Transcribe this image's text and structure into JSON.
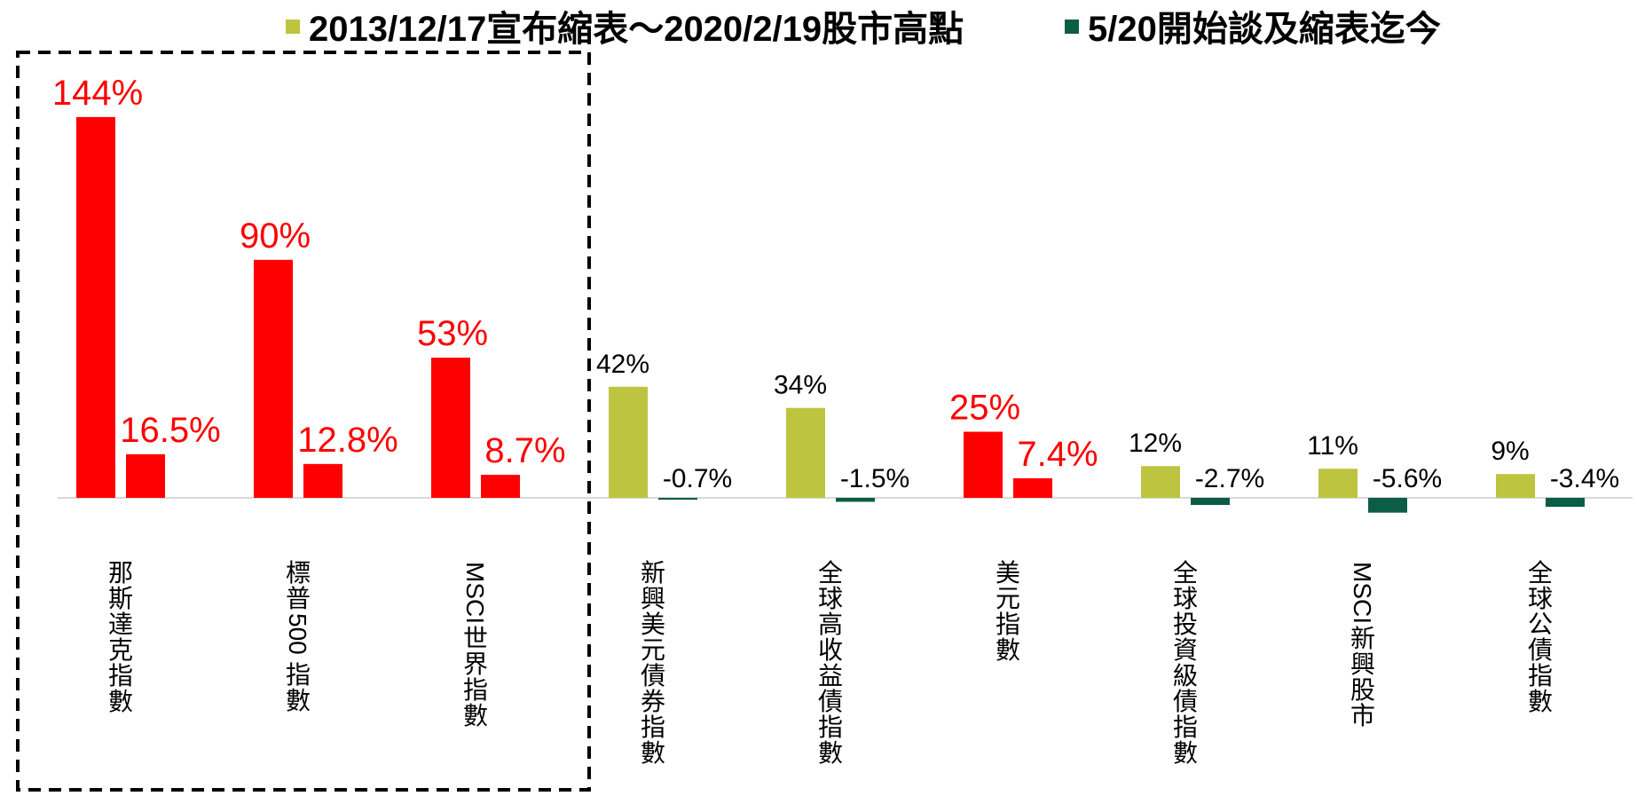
{
  "chart_data": {
    "type": "bar",
    "legend_position": "top",
    "grid": false,
    "ylim": [
      -10,
      160
    ],
    "colors": {
      "series1": "#BCC440",
      "series2": "#0B5D45",
      "highlight": "#FF0000",
      "axis": "#D9D9D9",
      "label_default": "#000000"
    },
    "series": [
      {
        "name": "2013/12/17宣布縮表～2020/2/19股市高點",
        "legend_label": "2013/12/17宣布縮表～2020/2/19股市高點",
        "values": [
          144,
          90,
          53,
          42,
          34,
          25,
          12,
          11,
          9
        ],
        "labels": [
          "144%",
          "90%",
          "53%",
          "42%",
          "34%",
          "25%",
          "12%",
          "11%",
          "9%"
        ]
      },
      {
        "name": "5/20開始談及縮表迄今",
        "legend_label": "5/20開始談及縮表迄今",
        "values": [
          16.5,
          12.8,
          8.7,
          -0.7,
          -1.5,
          7.4,
          -2.7,
          -5.6,
          -3.4
        ],
        "labels": [
          "16.5%",
          "12.8%",
          "8.7%",
          "-0.7%",
          "-1.5%",
          "7.4%",
          "-2.7%",
          "-5.6%",
          "-3.4%"
        ]
      }
    ],
    "categories": [
      {
        "name": "那斯達克指數",
        "lines": [
          "那",
          "斯",
          "達",
          "克",
          "指",
          "數"
        ],
        "highlight": true
      },
      {
        "name": "標普500指數",
        "lines": [
          "標",
          "普",
          "500",
          "指",
          "數"
        ],
        "highlight": true
      },
      {
        "name": "MSCI世界指數",
        "lines": [
          "MSCI",
          "世",
          "界",
          "指",
          "數"
        ],
        "highlight": true
      },
      {
        "name": "新興美元債券指數",
        "lines": [
          "新",
          "興",
          "美",
          "元",
          "債",
          "券",
          "指",
          "數"
        ],
        "highlight": false
      },
      {
        "name": "全球高收益債指數",
        "lines": [
          "全",
          "球",
          "高",
          "收",
          "益",
          "債",
          "指",
          "數"
        ],
        "highlight": false
      },
      {
        "name": "美元指數",
        "lines": [
          "美",
          "元",
          "指",
          "數"
        ],
        "highlight": true
      },
      {
        "name": "全球投資級債指數",
        "lines": [
          "全",
          "球",
          "投",
          "資",
          "級",
          "債",
          "指",
          "數"
        ],
        "highlight": false
      },
      {
        "name": "MSCI新興股市",
        "lines": [
          "MSCI",
          "新",
          "興",
          "股",
          "市"
        ],
        "highlight": false
      },
      {
        "name": "全球公債指數",
        "lines": [
          "全",
          "球",
          "公",
          "債",
          "指",
          "數"
        ],
        "highlight": false
      }
    ]
  }
}
